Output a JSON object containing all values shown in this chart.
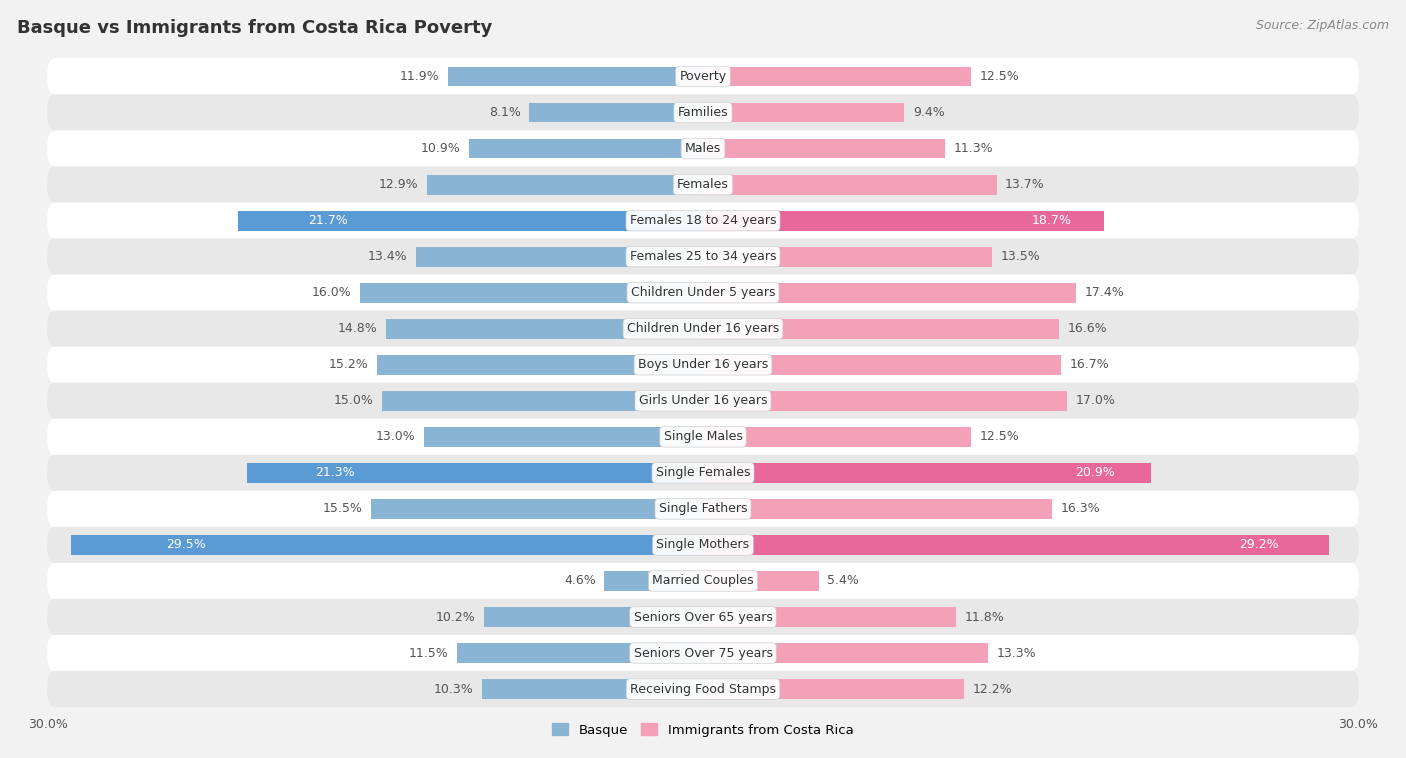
{
  "title": "Basque vs Immigrants from Costa Rica Poverty",
  "source": "Source: ZipAtlas.com",
  "categories": [
    "Poverty",
    "Families",
    "Males",
    "Females",
    "Females 18 to 24 years",
    "Females 25 to 34 years",
    "Children Under 5 years",
    "Children Under 16 years",
    "Boys Under 16 years",
    "Girls Under 16 years",
    "Single Males",
    "Single Females",
    "Single Fathers",
    "Single Mothers",
    "Married Couples",
    "Seniors Over 65 years",
    "Seniors Over 75 years",
    "Receiving Food Stamps"
  ],
  "basque_values": [
    11.9,
    8.1,
    10.9,
    12.9,
    21.7,
    13.4,
    16.0,
    14.8,
    15.2,
    15.0,
    13.0,
    21.3,
    15.5,
    29.5,
    4.6,
    10.2,
    11.5,
    10.3
  ],
  "costa_rica_values": [
    12.5,
    9.4,
    11.3,
    13.7,
    18.7,
    13.5,
    17.4,
    16.6,
    16.7,
    17.0,
    12.5,
    20.9,
    16.3,
    29.2,
    5.4,
    11.8,
    13.3,
    12.2
  ],
  "basque_color": "#8ab4d4",
  "basque_highlight_color": "#5b9bd5",
  "costa_rica_color": "#f4a0b8",
  "costa_rica_highlight_color": "#e8689a",
  "background_color": "#f2f2f2",
  "row_bg_even": "#ffffff",
  "row_bg_odd": "#e8e8e8",
  "bar_height": 0.55,
  "max_val": 30.0,
  "xlabel_val": "30.0%",
  "legend_labels": [
    "Basque",
    "Immigrants from Costa Rica"
  ],
  "highlight_rows": [
    4,
    11,
    13
  ],
  "title_fontsize": 13,
  "source_fontsize": 9,
  "label_fontsize": 9,
  "value_fontsize": 9
}
